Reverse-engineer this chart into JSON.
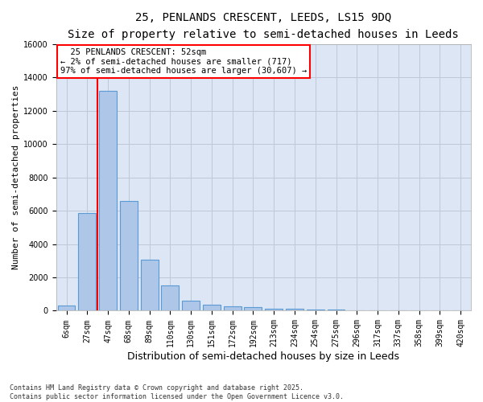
{
  "title_line1": "25, PENLANDS CRESCENT, LEEDS, LS15 9DQ",
  "title_line2": "Size of property relative to semi-detached houses in Leeds",
  "xlabel": "Distribution of semi-detached houses by size in Leeds",
  "ylabel": "Number of semi-detached properties",
  "footnote": "Contains HM Land Registry data © Crown copyright and database right 2025.\nContains public sector information licensed under the Open Government Licence v3.0.",
  "bar_labels": [
    "6sqm",
    "27sqm",
    "47sqm",
    "68sqm",
    "89sqm",
    "110sqm",
    "130sqm",
    "151sqm",
    "172sqm",
    "192sqm",
    "213sqm",
    "234sqm",
    "254sqm",
    "275sqm",
    "296sqm",
    "317sqm",
    "337sqm",
    "358sqm",
    "399sqm",
    "420sqm"
  ],
  "bar_values": [
    300,
    5850,
    13200,
    6600,
    3050,
    1500,
    600,
    350,
    280,
    200,
    130,
    100,
    80,
    50,
    20,
    10,
    5,
    3,
    1,
    0
  ],
  "bar_color": "#aec6e8",
  "bar_edge_color": "#5b9bd5",
  "grid_color": "#c0c8d8",
  "background_color": "#dce6f5",
  "vline_color": "red",
  "vline_x_index": 1.5,
  "annotation_text": "  25 PENLANDS CRESCENT: 52sqm\n← 2% of semi-detached houses are smaller (717)\n97% of semi-detached houses are larger (30,607) →",
  "annotation_box_color": "red",
  "ylim": [
    0,
    16000
  ],
  "yticks": [
    0,
    2000,
    4000,
    6000,
    8000,
    10000,
    12000,
    14000,
    16000
  ],
  "title_fontsize": 10,
  "subtitle_fontsize": 9,
  "tick_fontsize": 7,
  "ylabel_fontsize": 8,
  "xlabel_fontsize": 9,
  "annot_fontsize": 7.5
}
